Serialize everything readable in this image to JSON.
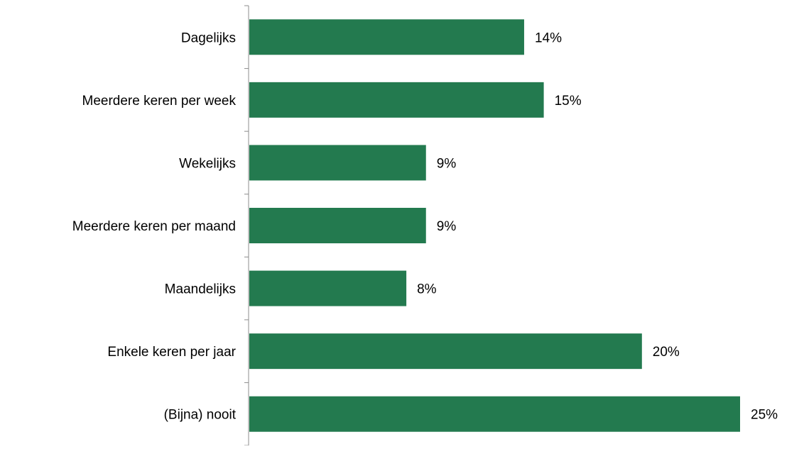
{
  "chart_data": {
    "type": "bar",
    "orientation": "horizontal",
    "categories": [
      "Dagelijks",
      "Meerdere keren per week",
      "Wekelijks",
      "Meerdere keren per maand",
      "Maandelijks",
      "Enkele keren per jaar",
      "(Bijna) nooit"
    ],
    "values": [
      14,
      15,
      9,
      9,
      8,
      20,
      25
    ],
    "value_labels": [
      "14%",
      "15%",
      "9%",
      "9%",
      "8%",
      "20%",
      "25%"
    ],
    "title": "",
    "xlabel": "",
    "ylabel": "",
    "value_unit": "%",
    "legend": "none",
    "grid": false,
    "bar_color": "#237A4F"
  }
}
